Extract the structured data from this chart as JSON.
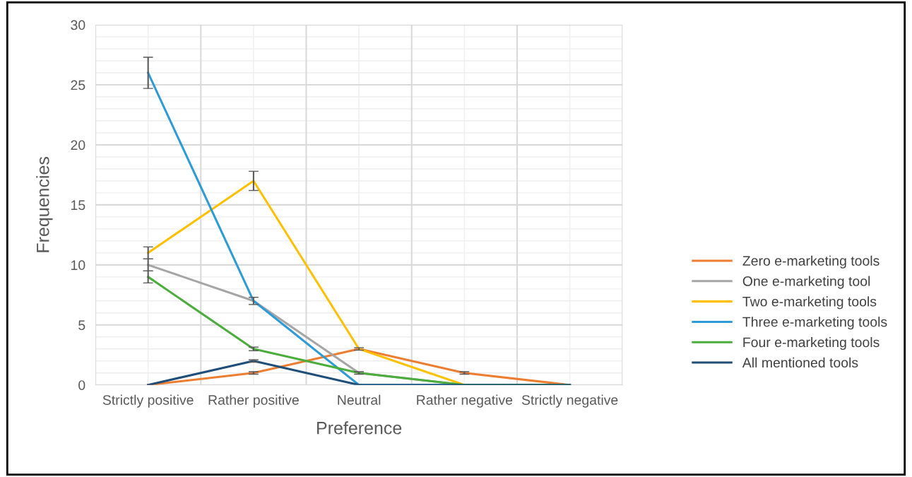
{
  "chart_data": {
    "type": "line",
    "xlabel": "Preference",
    "ylabel": "Frequencies",
    "categories": [
      "Strictly positive",
      "Rather positive",
      "Neutral",
      "Rather negative",
      "Strictly negative"
    ],
    "series": [
      {
        "name": "Zero e-marketing tools",
        "color": "#ed7d31",
        "values": [
          0,
          1,
          3,
          1,
          0
        ],
        "errors": [
          null,
          0.1,
          0.1,
          0.1,
          null
        ]
      },
      {
        "name": "One e-marketing tool",
        "color": "#a5a5a5",
        "values": [
          10,
          7,
          1,
          0,
          0
        ],
        "errors": [
          0.5,
          0.3,
          0.1,
          null,
          null
        ]
      },
      {
        "name": "Two e-marketing tools",
        "color": "#ffc000",
        "values": [
          11,
          17,
          3,
          0,
          0
        ],
        "errors": [
          0.5,
          0.8,
          null,
          null,
          null
        ]
      },
      {
        "name": "Three e-marketing tools",
        "color": "#2e9bd6",
        "values": [
          26,
          7,
          0,
          0,
          0
        ],
        "errors": [
          1.3,
          null,
          null,
          null,
          null
        ]
      },
      {
        "name": "Four e-marketing tools",
        "color": "#4aad3c",
        "values": [
          9,
          3,
          1,
          0,
          0
        ],
        "errors": [
          0.5,
          0.15,
          null,
          null,
          null
        ]
      },
      {
        "name": "All mentioned tools",
        "color": "#1f4e79",
        "values": [
          0,
          2,
          0,
          0,
          0
        ],
        "errors": [
          null,
          0.1,
          null,
          null,
          null
        ]
      }
    ],
    "ylim": [
      0,
      30
    ],
    "yticks": [
      0,
      5,
      10,
      15,
      20,
      25,
      30
    ],
    "grid": true,
    "legend": "right",
    "marker": "none",
    "line_style": "solid"
  }
}
